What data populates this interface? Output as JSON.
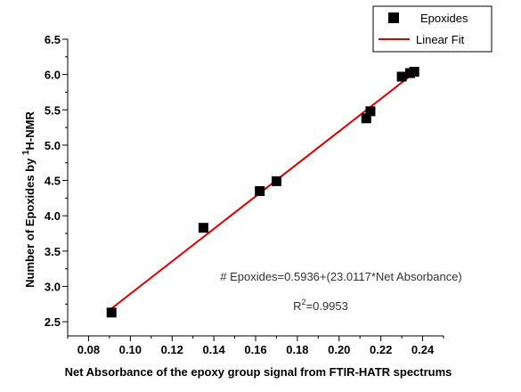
{
  "chart_data": {
    "type": "scatter",
    "xlabel": "Net Absorbance of the epoxy group signal from FTIR-HATR spectrums",
    "ylabel_parts": {
      "before": "Number of Epoxides by ",
      "sup": "1",
      "after": "H-NMR"
    },
    "xlim": [
      0.07,
      0.25
    ],
    "ylim": [
      2.3,
      6.5
    ],
    "xticks": [
      0.08,
      0.1,
      0.12,
      0.14,
      0.16,
      0.18,
      0.2,
      0.22,
      0.24
    ],
    "xtick_labels": [
      "0.08",
      "0.10",
      "0.12",
      "0.14",
      "0.16",
      "0.18",
      "0.20",
      "0.22",
      "0.24"
    ],
    "yticks": [
      2.5,
      3.0,
      3.5,
      4.0,
      4.5,
      5.0,
      5.5,
      6.0,
      6.5
    ],
    "ytick_labels": [
      "2.5",
      "3.0",
      "3.5",
      "4.0",
      "4.5",
      "5.0",
      "5.5",
      "6.0",
      "6.5"
    ],
    "series": [
      {
        "name": "Epoxides",
        "color": "#000000",
        "marker": "square",
        "x": [
          0.091,
          0.135,
          0.162,
          0.17,
          0.213,
          0.215,
          0.23,
          0.234,
          0.236
        ],
        "y": [
          2.63,
          3.83,
          4.35,
          4.49,
          5.38,
          5.48,
          5.97,
          6.02,
          6.04
        ]
      }
    ],
    "fit": {
      "name": "Linear Fit",
      "color": "#e00000",
      "intercept": 0.5936,
      "slope": 23.0117,
      "x_range": [
        0.091,
        0.236
      ]
    },
    "annotation": {
      "equation": "# Epoxides=0.5936+(23.0117*Net Absorbance)",
      "r2_prefix": "R",
      "r2_sup": "2",
      "r2_suffix": "=0.9953"
    },
    "legend_position": "top-right",
    "grid": false
  }
}
